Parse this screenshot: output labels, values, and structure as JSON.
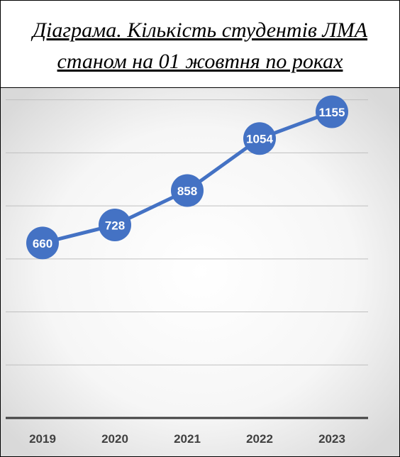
{
  "chart_data": {
    "type": "line",
    "title": [
      "Діаграма. Кількість студентів ЛМА",
      "станом на 01 жовтня по роках"
    ],
    "categories": [
      "2019",
      "2020",
      "2021",
      "2022",
      "2023"
    ],
    "series": [
      {
        "name": "Кількість студентів",
        "color": "#4472c4",
        "values": [
          660,
          728,
          858,
          1054,
          1155
        ]
      }
    ],
    "ylim": [
      0,
      1250
    ],
    "yticks": [
      0,
      200,
      400,
      600,
      800,
      1000,
      1200
    ],
    "grid": true
  }
}
